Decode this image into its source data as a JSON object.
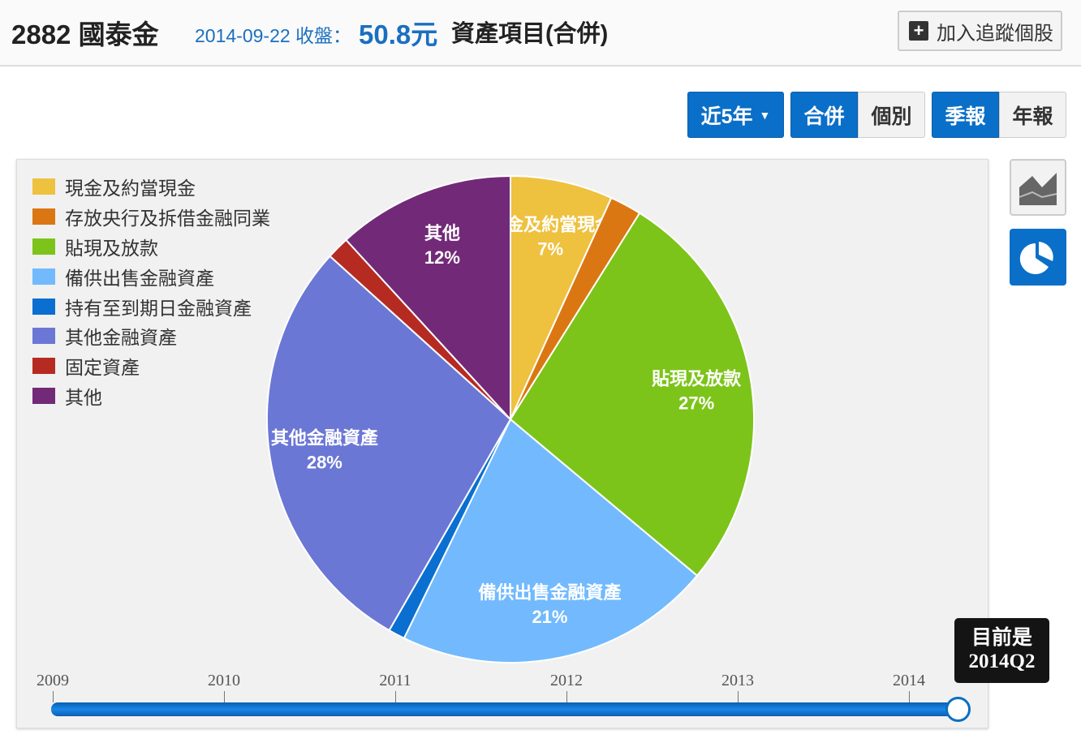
{
  "header": {
    "title": "2882 國泰金",
    "date_label": "2014-09-22 收盤：",
    "price": "50.8元",
    "subject": "資產項目(合併)",
    "track_button": "加入追蹤個股",
    "plus_icon": "plus-icon"
  },
  "controls": {
    "range": "近5年",
    "consolidated": "合併",
    "individual": "個別",
    "quarterly": "季報",
    "annual": "年報",
    "active": [
      "近5年",
      "合併",
      "季報"
    ]
  },
  "side_buttons": {
    "area_chart": "area-chart-icon",
    "pie_chart": "pie-chart-icon",
    "active": "pie-chart-icon"
  },
  "chart_data": {
    "type": "pie",
    "start": "top",
    "direction": "clockwise",
    "slices": [
      {
        "name": "現金及約當現金",
        "value": 6.8,
        "label": "7%",
        "color": "#EEC13F",
        "show_label": true
      },
      {
        "name": "存放央行及拆借金融同業",
        "value": 2.1,
        "label": "",
        "color": "#DB7713",
        "show_label": false
      },
      {
        "name": "貼現及放款",
        "value": 27.2,
        "label": "27%",
        "color": "#7DC41A",
        "show_label": true
      },
      {
        "name": "備供出售金融資產",
        "value": 21.1,
        "label": "21%",
        "color": "#72BAFD",
        "show_label": true
      },
      {
        "name": "持有至到期日金融資產",
        "value": 1.1,
        "label": "",
        "color": "#0A6FD0",
        "show_label": false
      },
      {
        "name": "其他金融資產",
        "value": 28.4,
        "label": "28%",
        "color": "#6B77D5",
        "show_label": true
      },
      {
        "name": "固定資產",
        "value": 1.5,
        "label": "",
        "color": "#B52B22",
        "show_label": false
      },
      {
        "name": "其他",
        "value": 11.8,
        "label": "12%",
        "color": "#722A78",
        "show_label": true
      }
    ],
    "legend_position": "top-left"
  },
  "timeline": {
    "ticks": [
      "2009",
      "2010",
      "2011",
      "2012",
      "2013",
      "2014"
    ],
    "current_label": "目前是",
    "current_value": "2014Q2",
    "position": 1.0
  }
}
